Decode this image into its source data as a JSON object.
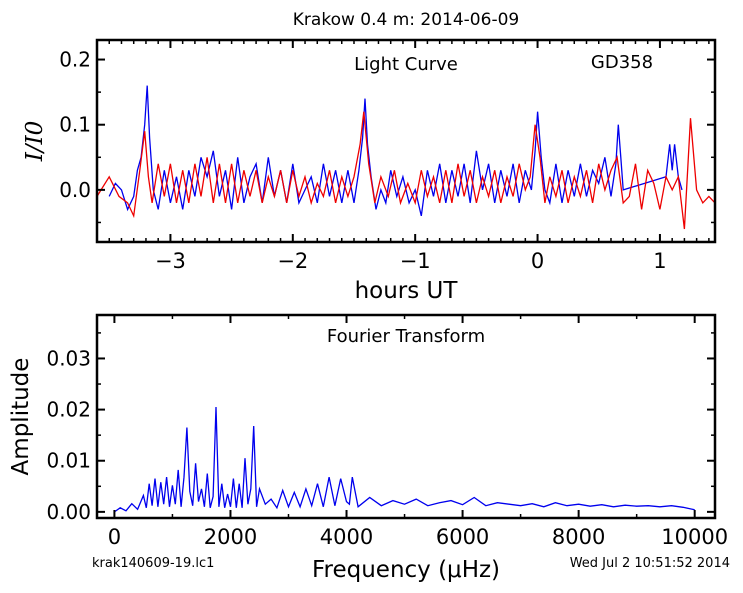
{
  "figure": {
    "title": "Krakow 0.4 m:  2014-06-09",
    "footer_left": "krak140609-19.lc1",
    "footer_right": "Wed Jul  2 10:51:52 2014"
  },
  "colors": {
    "data": "#0000ee",
    "fit": "#ee0000",
    "axes": "#000000"
  },
  "chart_data": [
    {
      "type": "line",
      "name": "light_curve",
      "title": "Light Curve",
      "annotation": "GD358",
      "xlabel": "hours UT",
      "ylabel": "I/I0",
      "xlim": [
        -3.6,
        1.45
      ],
      "ylim": [
        -0.08,
        0.23
      ],
      "xticks": [
        -3,
        -2,
        -1,
        0,
        1
      ],
      "xtick_labels": [
        "−3",
        "−2",
        "−1",
        "0",
        "1"
      ],
      "yticks": [
        0.0,
        0.1,
        0.2
      ],
      "ytick_labels": [
        "0.0",
        "0.1",
        "0.2"
      ],
      "grid": false,
      "series": [
        {
          "color": "#0000ee",
          "x": [
            -3.5,
            -3.45,
            -3.4,
            -3.35,
            -3.3,
            -3.27,
            -3.24,
            -3.21,
            -3.19,
            -3.17,
            -3.14,
            -3.1,
            -3.05,
            -3.0,
            -2.95,
            -2.9,
            -2.85,
            -2.8,
            -2.75,
            -2.7,
            -2.65,
            -2.6,
            -2.55,
            -2.5,
            -2.45,
            -2.4,
            -2.35,
            -2.3,
            -2.25,
            -2.2,
            -2.15,
            -2.1,
            -2.05,
            -2.0,
            -1.95,
            -1.9,
            -1.85,
            -1.8,
            -1.75,
            -1.7,
            -1.65,
            -1.6,
            -1.55,
            -1.5,
            -1.46,
            -1.43,
            -1.41,
            -1.39,
            -1.36,
            -1.32,
            -1.28,
            -1.24,
            -1.2,
            -1.15,
            -1.1,
            -1.05,
            -1.0,
            -0.95,
            -0.9,
            -0.85,
            -0.8,
            -0.75,
            -0.7,
            -0.65,
            -0.6,
            -0.55,
            -0.5,
            -0.45,
            -0.4,
            -0.35,
            -0.3,
            -0.25,
            -0.2,
            -0.15,
            -0.1,
            -0.05,
            -0.02,
            0.0,
            0.03,
            0.06,
            0.1,
            0.15,
            0.2,
            0.25,
            0.3,
            0.35,
            0.4,
            0.45,
            0.5,
            0.55,
            0.6,
            0.64,
            0.66,
            0.68,
            0.7,
            1.05,
            1.08,
            1.1,
            1.12,
            1.15,
            1.18
          ],
          "y": [
            -0.01,
            0.01,
            0.0,
            -0.03,
            -0.01,
            0.03,
            0.05,
            0.1,
            0.16,
            0.08,
            0.0,
            -0.03,
            0.03,
            -0.02,
            0.02,
            -0.03,
            0.03,
            -0.01,
            0.05,
            0.02,
            0.06,
            -0.01,
            0.03,
            -0.03,
            0.05,
            -0.02,
            0.02,
            0.04,
            -0.02,
            0.05,
            -0.01,
            0.03,
            -0.02,
            0.04,
            -0.02,
            0.0,
            0.02,
            -0.02,
            0.04,
            -0.01,
            0.03,
            -0.02,
            0.03,
            -0.02,
            0.03,
            0.08,
            0.14,
            0.07,
            0.02,
            -0.03,
            0.0,
            -0.02,
            0.03,
            -0.01,
            0.02,
            -0.02,
            0.0,
            -0.04,
            0.03,
            -0.01,
            0.04,
            -0.02,
            0.03,
            -0.01,
            0.04,
            -0.02,
            0.06,
            0.0,
            0.04,
            -0.02,
            0.03,
            -0.01,
            0.04,
            -0.02,
            0.03,
            0.0,
            0.06,
            0.12,
            0.05,
            0.0,
            -0.02,
            0.04,
            -0.02,
            0.03,
            -0.01,
            0.04,
            -0.01,
            0.03,
            0.01,
            0.05,
            -0.01,
            0.04,
            0.1,
            0.05,
            0.0,
            0.02,
            0.07,
            0.03,
            0.07,
            0.02,
            0.0
          ]
        },
        {
          "color": "#ee0000",
          "x": [
            -3.6,
            -3.5,
            -3.42,
            -3.35,
            -3.3,
            -3.25,
            -3.21,
            -3.18,
            -3.15,
            -3.1,
            -3.05,
            -3.0,
            -2.95,
            -2.9,
            -2.85,
            -2.8,
            -2.75,
            -2.7,
            -2.65,
            -2.6,
            -2.55,
            -2.5,
            -2.45,
            -2.4,
            -2.35,
            -2.3,
            -2.25,
            -2.2,
            -2.15,
            -2.1,
            -2.05,
            -2.0,
            -1.95,
            -1.9,
            -1.85,
            -1.8,
            -1.75,
            -1.7,
            -1.65,
            -1.6,
            -1.55,
            -1.5,
            -1.45,
            -1.42,
            -1.38,
            -1.33,
            -1.28,
            -1.22,
            -1.17,
            -1.12,
            -1.06,
            -1.0,
            -0.95,
            -0.9,
            -0.85,
            -0.8,
            -0.75,
            -0.7,
            -0.65,
            -0.6,
            -0.55,
            -0.5,
            -0.45,
            -0.4,
            -0.35,
            -0.3,
            -0.25,
            -0.2,
            -0.15,
            -0.1,
            -0.06,
            -0.02,
            0.02,
            0.06,
            0.1,
            0.15,
            0.2,
            0.25,
            0.3,
            0.35,
            0.4,
            0.45,
            0.5,
            0.55,
            0.6,
            0.65,
            0.7,
            0.75,
            0.8,
            0.85,
            0.9,
            0.95,
            1.0,
            1.05,
            1.1,
            1.15,
            1.2,
            1.25,
            1.3,
            1.35,
            1.4,
            1.45
          ],
          "y": [
            -0.01,
            0.02,
            -0.01,
            -0.02,
            -0.04,
            0.03,
            0.09,
            0.02,
            -0.02,
            0.04,
            -0.01,
            0.04,
            -0.02,
            0.03,
            -0.02,
            0.04,
            -0.01,
            0.05,
            -0.02,
            0.04,
            -0.02,
            0.04,
            -0.02,
            0.03,
            -0.01,
            0.03,
            -0.02,
            0.02,
            -0.01,
            0.03,
            -0.02,
            0.03,
            -0.01,
            0.02,
            -0.02,
            0.01,
            -0.01,
            0.03,
            -0.02,
            0.02,
            -0.01,
            0.02,
            0.07,
            0.12,
            0.04,
            -0.02,
            0.02,
            -0.01,
            0.03,
            -0.02,
            0.01,
            -0.02,
            0.03,
            -0.01,
            0.02,
            -0.02,
            0.03,
            -0.02,
            0.04,
            -0.01,
            0.03,
            -0.02,
            0.02,
            -0.01,
            0.03,
            -0.02,
            0.02,
            -0.01,
            0.04,
            0.0,
            0.02,
            0.1,
            0.05,
            -0.02,
            0.02,
            -0.01,
            0.03,
            -0.02,
            0.02,
            -0.01,
            0.03,
            -0.02,
            0.04,
            0.0,
            0.03,
            0.05,
            -0.02,
            -0.01,
            0.04,
            -0.03,
            0.03,
            0.01,
            -0.03,
            0.02,
            0.0,
            0.02,
            -0.06,
            0.11,
            0.0,
            -0.02,
            -0.01,
            -0.02
          ]
        }
      ]
    },
    {
      "type": "line",
      "name": "fourier_transform",
      "title": "Fourier Transform",
      "xlabel": "Frequency (μHz)",
      "ylabel": "Amplitude",
      "xlim": [
        -300,
        10350
      ],
      "ylim": [
        -0.0012,
        0.0385
      ],
      "xticks": [
        0,
        2000,
        4000,
        6000,
        8000,
        10000
      ],
      "xtick_labels": [
        "0",
        "2000",
        "4000",
        "6000",
        "8000",
        "10000"
      ],
      "yticks": [
        0.0,
        0.01,
        0.02,
        0.03
      ],
      "ytick_labels": [
        "0.00",
        "0.01",
        "0.02",
        "0.03"
      ],
      "grid": false,
      "series": [
        {
          "color": "#0000ee",
          "x": [
            0,
            100,
            200,
            300,
            400,
            500,
            550,
            600,
            650,
            700,
            750,
            800,
            850,
            900,
            950,
            1000,
            1050,
            1100,
            1150,
            1200,
            1250,
            1300,
            1350,
            1400,
            1450,
            1500,
            1550,
            1600,
            1650,
            1700,
            1750,
            1800,
            1850,
            1900,
            1950,
            2000,
            2050,
            2100,
            2150,
            2200,
            2250,
            2300,
            2350,
            2400,
            2450,
            2500,
            2600,
            2700,
            2800,
            2900,
            3000,
            3100,
            3200,
            3300,
            3400,
            3500,
            3600,
            3700,
            3800,
            3900,
            4000,
            4050,
            4100,
            4200,
            4400,
            4600,
            4800,
            5000,
            5200,
            5400,
            5600,
            5800,
            6000,
            6200,
            6400,
            6600,
            6800,
            7000,
            7200,
            7400,
            7600,
            7800,
            8000,
            8200,
            8400,
            8600,
            8800,
            9000,
            9200,
            9400,
            9600,
            9800,
            10000
          ],
          "y": [
            0.0,
            0.0008,
            0.0002,
            0.0016,
            0.0005,
            0.0032,
            0.0008,
            0.0055,
            0.0012,
            0.0065,
            0.001,
            0.0058,
            0.0015,
            0.0068,
            0.001,
            0.0052,
            0.0015,
            0.0082,
            0.001,
            0.0068,
            0.0165,
            0.004,
            0.0012,
            0.0095,
            0.002,
            0.0045,
            0.001,
            0.0075,
            0.0008,
            0.003,
            0.0205,
            0.001,
            0.0055,
            0.0008,
            0.0035,
            0.001,
            0.0065,
            0.0008,
            0.0055,
            0.0008,
            0.0105,
            0.0015,
            0.0045,
            0.0168,
            0.001,
            0.0045,
            0.0015,
            0.0025,
            0.0008,
            0.0042,
            0.001,
            0.0038,
            0.001,
            0.0045,
            0.0012,
            0.0055,
            0.001,
            0.0068,
            0.0012,
            0.0065,
            0.002,
            0.0015,
            0.0068,
            0.001,
            0.0028,
            0.0012,
            0.0022,
            0.0015,
            0.0025,
            0.0012,
            0.0018,
            0.0022,
            0.0014,
            0.0028,
            0.0012,
            0.0018,
            0.0015,
            0.0012,
            0.0016,
            0.001,
            0.0018,
            0.0012,
            0.0015,
            0.0011,
            0.0014,
            0.001,
            0.0013,
            0.0011,
            0.0012,
            0.001,
            0.0012,
            0.0009,
            0.0004
          ]
        }
      ]
    }
  ]
}
